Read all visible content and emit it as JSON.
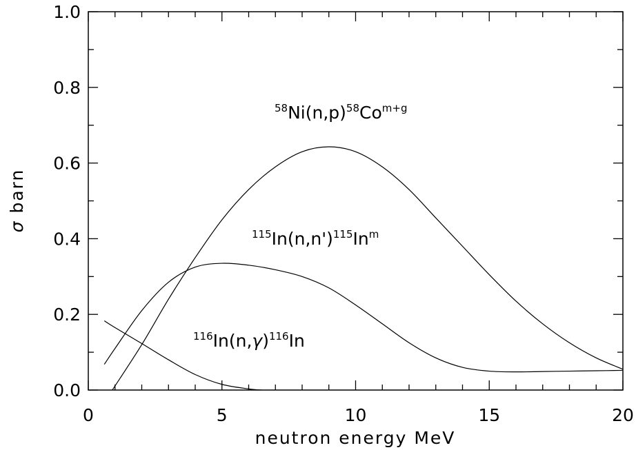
{
  "chart_data": {
    "type": "line",
    "xlabel": "neutron energy MeV",
    "ylabel_symbol": "σ",
    "ylabel_unit": "barn",
    "xlim": [
      0,
      20
    ],
    "ylim": [
      0,
      1.0
    ],
    "x_ticks": [
      0,
      5,
      10,
      15,
      20
    ],
    "y_ticks": [
      0.0,
      0.2,
      0.4,
      0.6,
      0.8,
      1.0
    ],
    "x_tick_labels": [
      "0",
      "5",
      "10",
      "15",
      "20"
    ],
    "y_tick_labels": [
      "0.0",
      "0.2",
      "0.4",
      "0.6",
      "0.8",
      "1.0"
    ],
    "grid": false,
    "series": [
      {
        "label_parts": {
          "pre_sup": "58",
          "main": "Ni(n,p)",
          "mid_sup": "58",
          "main2": "Co",
          "post_sup": "m+g"
        },
        "x": [
          0.9,
          2,
          3,
          4,
          5,
          6,
          7,
          8,
          9,
          10,
          11,
          12,
          13,
          14,
          15,
          16,
          17,
          18,
          19,
          20
        ],
        "y": [
          0.0,
          0.12,
          0.24,
          0.35,
          0.45,
          0.53,
          0.59,
          0.63,
          0.643,
          0.63,
          0.59,
          0.53,
          0.455,
          0.38,
          0.305,
          0.235,
          0.175,
          0.125,
          0.085,
          0.055
        ]
      },
      {
        "label_parts": {
          "pre_sup": "115",
          "main": "In(n,n')",
          "mid_sup": "115",
          "main2": "In",
          "post_sup": "m"
        },
        "x": [
          0.6,
          1,
          2,
          3,
          4,
          5,
          6,
          7,
          8,
          9,
          10,
          11,
          12,
          13,
          14,
          15,
          16,
          17,
          18,
          19,
          20
        ],
        "y": [
          0.068,
          0.11,
          0.21,
          0.285,
          0.325,
          0.335,
          0.33,
          0.318,
          0.3,
          0.27,
          0.225,
          0.175,
          0.125,
          0.085,
          0.06,
          0.05,
          0.048,
          0.049,
          0.05,
          0.051,
          0.052
        ]
      },
      {
        "label_parts": {
          "pre_sup": "116",
          "main": "In(n,",
          "gamma": "γ",
          "main_close": ")",
          "mid_sup": "116",
          "main2": "In"
        },
        "x": [
          0.6,
          1,
          2,
          3,
          4,
          5,
          6,
          6.5
        ],
        "y": [
          0.183,
          0.165,
          0.123,
          0.08,
          0.041,
          0.015,
          0.003,
          0.0
        ]
      }
    ]
  }
}
